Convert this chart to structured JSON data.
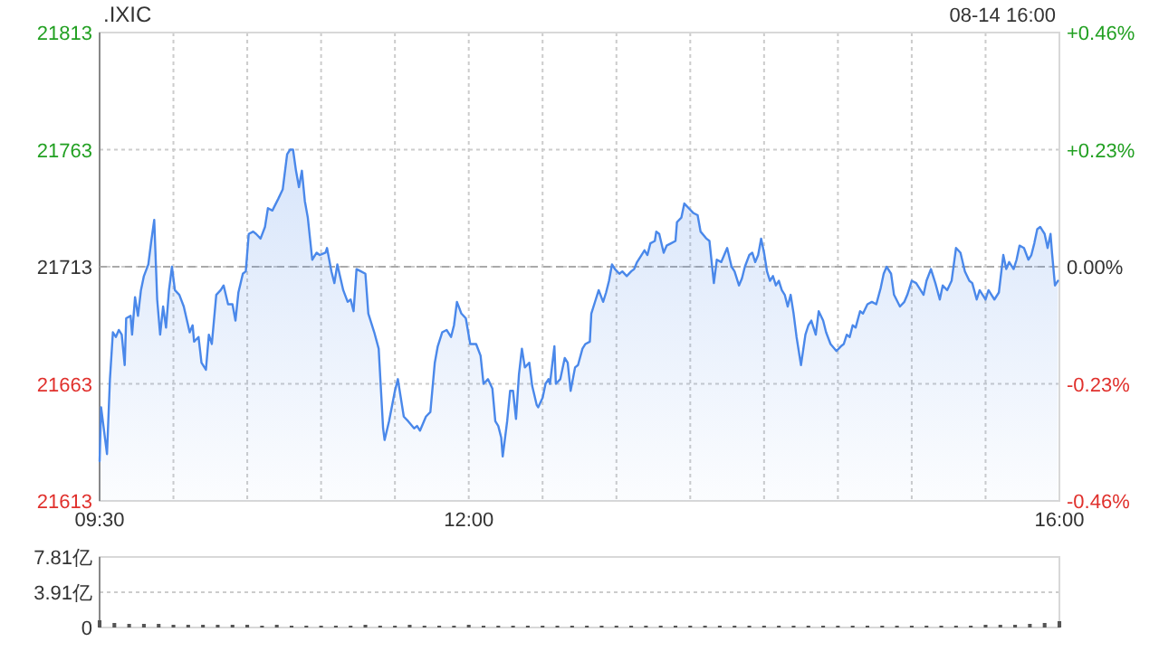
{
  "chart_data": [
    {
      "type": "area",
      "title": ".IXIC",
      "subtitle": "08-14 16:00",
      "grid": true,
      "marker": "none",
      "line_style": "solid",
      "xlim": [
        9.5,
        16
      ],
      "xticks": [
        {
          "value": 9.5,
          "label": "09:30"
        },
        {
          "value": 10,
          "label": null
        },
        {
          "value": 10.5,
          "label": null
        },
        {
          "value": 11,
          "label": null
        },
        {
          "value": 11.5,
          "label": null
        },
        {
          "value": 12,
          "label": "12:00"
        },
        {
          "value": 12.5,
          "label": null
        },
        {
          "value": 13,
          "label": null
        },
        {
          "value": 13.5,
          "label": null
        },
        {
          "value": 14,
          "label": null
        },
        {
          "value": 14.5,
          "label": null
        },
        {
          "value": 15,
          "label": null
        },
        {
          "value": 15.5,
          "label": null
        },
        {
          "value": 16,
          "label": "16:00"
        }
      ],
      "ylim": [
        21613,
        21813
      ],
      "yticks": [
        21613,
        21663,
        21713,
        21763,
        21813
      ],
      "y2lim": [
        -0.46,
        0.46
      ],
      "y2ticks": [
        {
          "value": -0.46,
          "label": "-0.46%"
        },
        {
          "value": -0.23,
          "label": "-0.23%"
        },
        {
          "value": 0,
          "label": "0.00%"
        },
        {
          "value": 0.23,
          "label": "+0.23%"
        },
        {
          "value": 0.46,
          "label": "+0.46%"
        }
      ],
      "ref_lines": [
        {
          "axis": "y",
          "value": 21713,
          "line_style": "dashed",
          "color": "#aaaaaa"
        }
      ],
      "series": [
        {
          "color": "#4a88ea",
          "x": [
            9.5,
            9.51,
            9.55,
            9.57,
            9.59,
            9.61,
            9.63,
            9.65,
            9.67,
            9.68,
            9.71,
            9.72,
            9.74,
            9.76,
            9.78,
            9.8,
            9.83,
            9.85,
            9.87,
            9.89,
            9.91,
            9.93,
            9.95,
            9.97,
            9.99,
            10.01,
            10.04,
            10.07,
            10.11,
            10.13,
            10.14,
            10.17,
            10.19,
            10.22,
            10.24,
            10.26,
            10.29,
            10.32,
            10.34,
            10.37,
            10.4,
            10.42,
            10.44,
            10.47,
            10.49,
            10.51,
            10.54,
            10.56,
            10.59,
            10.62,
            10.64,
            10.67,
            10.71,
            10.74,
            10.77,
            10.79,
            10.81,
            10.83,
            10.85,
            10.87,
            10.89,
            10.91,
            10.94,
            10.97,
            10.99,
            11.03,
            11.04,
            11.07,
            11.09,
            11.11,
            11.15,
            11.18,
            11.2,
            11.22,
            11.24,
            11.27,
            11.3,
            11.32,
            11.36,
            11.39,
            11.42,
            11.43,
            11.46,
            11.5,
            11.52,
            11.56,
            11.59,
            11.63,
            11.65,
            11.67,
            11.71,
            11.74,
            11.77,
            11.79,
            11.82,
            11.85,
            11.88,
            11.9,
            11.92,
            11.95,
            11.98,
            12.01,
            12.05,
            12.08,
            12.1,
            12.13,
            12.16,
            12.18,
            12.2,
            12.22,
            12.23,
            12.26,
            12.28,
            12.3,
            12.32,
            12.34,
            12.36,
            12.38,
            12.41,
            12.43,
            12.46,
            12.47,
            12.5,
            12.52,
            12.54,
            12.55,
            12.58,
            12.59,
            12.62,
            12.65,
            12.67,
            12.69,
            12.72,
            12.74,
            12.77,
            12.79,
            12.82,
            12.83,
            12.86,
            12.88,
            12.91,
            12.93,
            12.95,
            12.97,
            12.99,
            13.02,
            13.04,
            13.07,
            13.1,
            13.12,
            13.14,
            13.17,
            13.19,
            13.21,
            13.23,
            13.26,
            13.27,
            13.29,
            13.32,
            13.34,
            13.37,
            13.4,
            13.41,
            13.44,
            13.46,
            13.49,
            13.52,
            13.55,
            13.57,
            13.61,
            13.63,
            13.66,
            13.68,
            13.71,
            13.73,
            13.75,
            13.78,
            13.8,
            13.83,
            13.85,
            13.87,
            13.9,
            13.92,
            13.94,
            13.96,
            13.98,
            14.0,
            14.02,
            14.04,
            14.06,
            14.08,
            14.1,
            14.12,
            14.14,
            14.16,
            14.18,
            14.2,
            14.22,
            14.25,
            14.28,
            14.3,
            14.32,
            14.35,
            14.37,
            14.4,
            14.42,
            14.45,
            14.49,
            14.52,
            14.54,
            14.56,
            14.58,
            14.6,
            14.62,
            14.65,
            14.67,
            14.7,
            14.73,
            14.76,
            14.79,
            14.81,
            14.83,
            14.86,
            14.88,
            14.92,
            14.95,
            14.97,
            15.0,
            15.03,
            15.06,
            15.08,
            15.1,
            15.13,
            15.16,
            15.19,
            15.21,
            15.24,
            15.27,
            15.3,
            15.33,
            15.36,
            15.39,
            15.41,
            15.44,
            15.46,
            15.48,
            15.5,
            15.52,
            15.54,
            15.56,
            15.59,
            15.62,
            15.64,
            15.66,
            15.69,
            15.71,
            15.73,
            15.76,
            15.79,
            15.81,
            15.83,
            15.85,
            15.87,
            15.9,
            15.92,
            15.94,
            15.95,
            15.97,
            15.99
          ],
          "values": [
            21630,
            21653,
            21633,
            21665,
            21685,
            21683,
            21686,
            21684,
            21671,
            21691,
            21692,
            21684,
            21700,
            21692,
            21703,
            21709,
            21714,
            21724,
            21733,
            21699,
            21684,
            21696,
            21687,
            21703,
            21713,
            21703,
            21701,
            21696,
            21685,
            21688,
            21681,
            21683,
            21672,
            21669,
            21684,
            21680,
            21701,
            21703,
            21705,
            21697,
            21697,
            21690,
            21702,
            21710,
            21711,
            21727,
            21728,
            21727,
            21725,
            21730,
            21738,
            21737,
            21742,
            21746,
            21761,
            21763,
            21763,
            21754,
            21747,
            21754,
            21741,
            21734,
            21716,
            21719,
            21718,
            21719,
            21721,
            21711,
            21706,
            21714,
            21703,
            21698,
            21699,
            21694,
            21712,
            21711,
            21710,
            21693,
            21685,
            21678,
            21644,
            21639,
            21647,
            21660,
            21665,
            21649,
            21647,
            21644,
            21645,
            21643,
            21649,
            21651,
            21672,
            21679,
            21685,
            21686,
            21683,
            21688,
            21698,
            21693,
            21691,
            21680,
            21680,
            21675,
            21663,
            21665,
            21661,
            21647,
            21645,
            21640,
            21632,
            21647,
            21660,
            21660,
            21648,
            21667,
            21678,
            21670,
            21672,
            21662,
            21654,
            21653,
            21657,
            21663,
            21665,
            21663,
            21679,
            21663,
            21665,
            21674,
            21672,
            21660,
            21670,
            21671,
            21678,
            21680,
            21681,
            21693,
            21699,
            21703,
            21698,
            21702,
            21707,
            21714,
            21712,
            21710,
            21711,
            21709,
            21711,
            21712,
            21715,
            21718,
            21720,
            21718,
            21723,
            21724,
            21728,
            21727,
            21719,
            21722,
            21723,
            21724,
            21732,
            21734,
            21740,
            21738,
            21736,
            21735,
            21728,
            21725,
            21724,
            21706,
            21716,
            21715,
            21718,
            21721,
            21713,
            21711,
            21705,
            21708,
            21713,
            21718,
            21719,
            21715,
            21718,
            21725,
            21719,
            21711,
            21707,
            21709,
            21705,
            21707,
            21703,
            21701,
            21696,
            21701,
            21693,
            21683,
            21671,
            21684,
            21688,
            21690,
            21684,
            21694,
            21690,
            21685,
            21680,
            21677,
            21679,
            21680,
            21684,
            21683,
            21688,
            21687,
            21694,
            21693,
            21697,
            21698,
            21697,
            21704,
            21710,
            21713,
            21710,
            21701,
            21696,
            21698,
            21701,
            21707,
            21706,
            21703,
            21701,
            21707,
            21712,
            21706,
            21699,
            21705,
            21703,
            21707,
            21721,
            21719,
            21711,
            21707,
            21706,
            21699,
            21703,
            21701,
            21699,
            21703,
            21701,
            21699,
            21702,
            21718,
            21712,
            21715,
            21712,
            21716,
            21722,
            21721,
            21716,
            21718,
            21723,
            21729,
            21730,
            21727,
            21721,
            21727,
            21719,
            21705,
            21707
          ]
        }
      ]
    },
    {
      "type": "bar",
      "grid": "y",
      "tick_labels": "y",
      "xlim": [
        9.5,
        16
      ],
      "ylim": [
        0,
        7.81
      ],
      "yticks": [
        0,
        {
          "value": 3.91,
          "label": "3.91亿"
        },
        {
          "value": 7.81,
          "label": "7.81亿"
        }
      ],
      "series": [
        {
          "color": "#555555",
          "x": [
            9.5,
            9.6,
            9.7,
            9.8,
            9.9,
            10.0,
            10.1,
            10.2,
            10.3,
            10.4,
            10.5,
            10.6,
            10.7,
            10.8,
            10.9,
            11.0,
            11.1,
            11.2,
            11.3,
            11.4,
            11.5,
            11.6,
            11.7,
            11.8,
            11.9,
            12.0,
            12.1,
            12.2,
            12.3,
            12.4,
            12.5,
            12.6,
            12.7,
            12.8,
            12.9,
            13.0,
            13.1,
            13.2,
            13.3,
            13.4,
            13.5,
            13.6,
            13.7,
            13.8,
            13.9,
            14.0,
            14.1,
            14.2,
            14.3,
            14.4,
            14.5,
            14.6,
            14.7,
            14.8,
            14.9,
            15.0,
            15.1,
            15.2,
            15.3,
            15.4,
            15.5,
            15.6,
            15.7,
            15.8,
            15.9,
            16.0
          ],
          "values": [
            0.8,
            0.5,
            0.4,
            0.4,
            0.4,
            0.3,
            0.3,
            0.3,
            0.3,
            0.3,
            0.3,
            0.2,
            0.3,
            0.2,
            0.2,
            0.2,
            0.2,
            0.2,
            0.3,
            0.2,
            0.2,
            0.3,
            0.2,
            0.2,
            0.2,
            0.3,
            0.2,
            0.2,
            0.2,
            0.2,
            0.2,
            0.2,
            0.2,
            0.2,
            0.2,
            0.2,
            0.2,
            0.2,
            0.2,
            0.2,
            0.2,
            0.2,
            0.2,
            0.2,
            0.2,
            0.2,
            0.2,
            0.2,
            0.2,
            0.2,
            0.2,
            0.2,
            0.2,
            0.2,
            0.2,
            0.2,
            0.2,
            0.2,
            0.2,
            0.2,
            0.3,
            0.3,
            0.3,
            0.4,
            0.5,
            0.7
          ]
        }
      ]
    }
  ]
}
